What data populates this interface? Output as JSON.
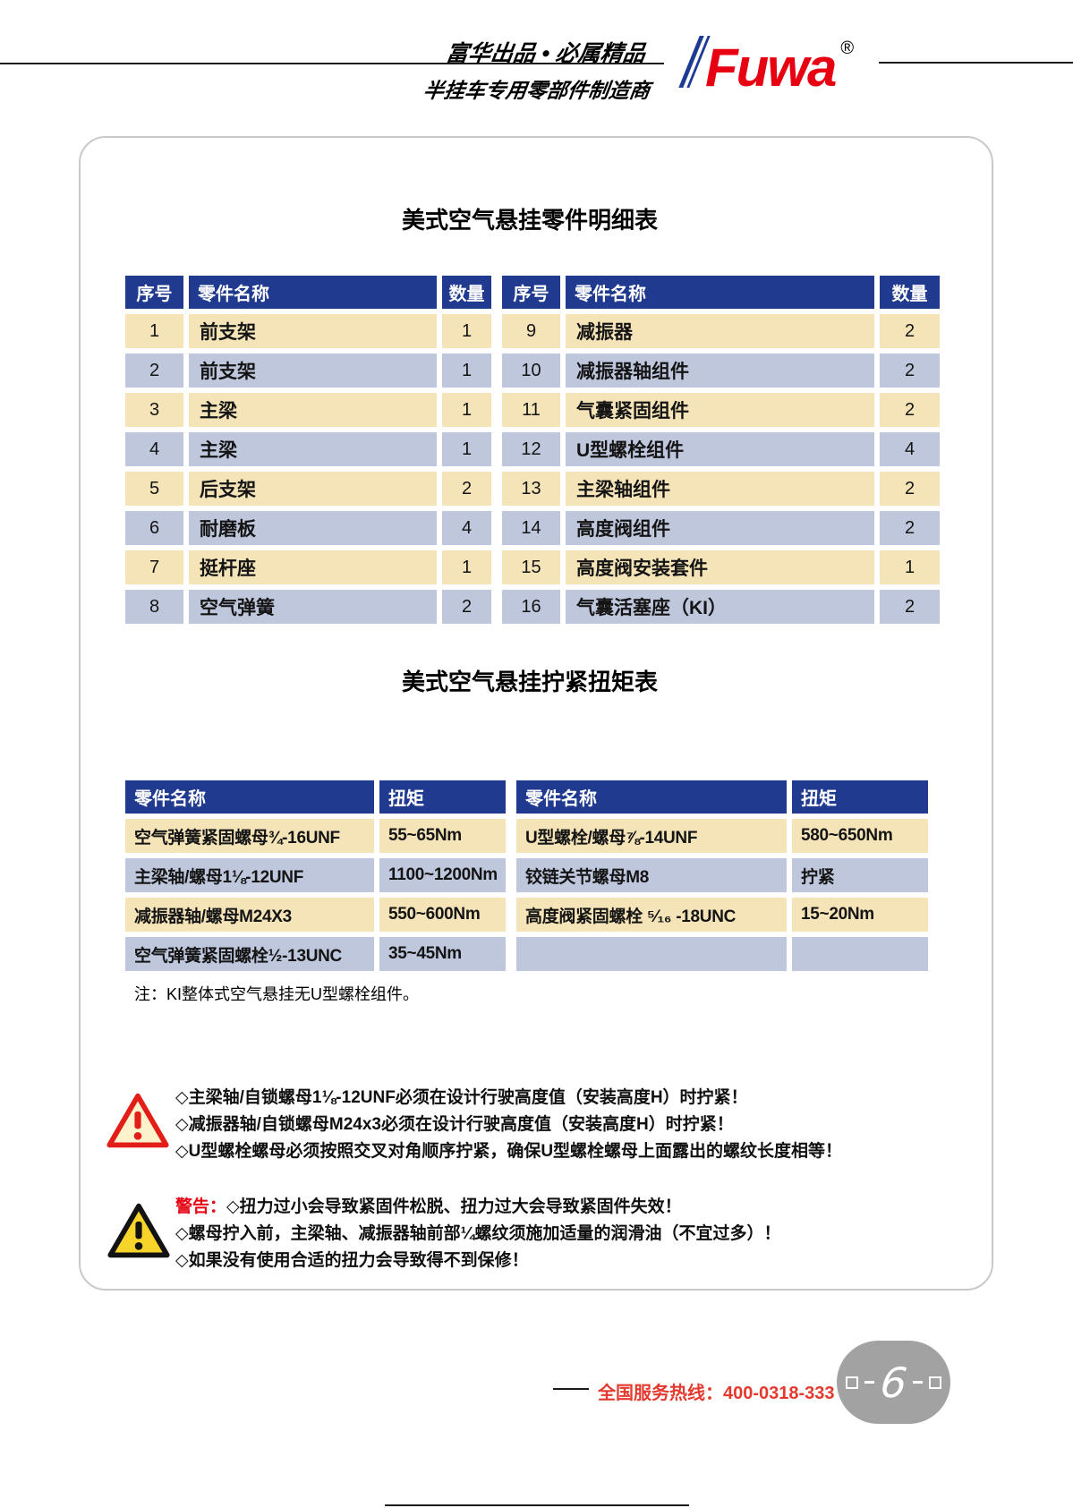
{
  "header": {
    "slogan_top": "富华出品 • 必属精品",
    "slogan_bottom": "半挂车专用零部件制造商",
    "logo_text": "Fuwa",
    "registered_mark": "®"
  },
  "parts_table": {
    "title": "美式空气悬挂零件明细表",
    "col_headers": [
      "序号",
      "零件名称",
      "数量"
    ],
    "rows_left": [
      [
        "1",
        "前支架",
        "1"
      ],
      [
        "2",
        "前支架",
        "1"
      ],
      [
        "3",
        "主梁",
        "1"
      ],
      [
        "4",
        "主梁",
        "1"
      ],
      [
        "5",
        "后支架",
        "2"
      ],
      [
        "6",
        "耐磨板",
        "4"
      ],
      [
        "7",
        "挺杆座",
        "1"
      ],
      [
        "8",
        "空气弹簧",
        "2"
      ]
    ],
    "rows_right": [
      [
        "9",
        "减振器",
        "2"
      ],
      [
        "10",
        "减振器轴组件",
        "2"
      ],
      [
        "11",
        "气囊紧固组件",
        "2"
      ],
      [
        "12",
        "U型螺栓组件",
        "4"
      ],
      [
        "13",
        "主梁轴组件",
        "2"
      ],
      [
        "14",
        "高度阀组件",
        "2"
      ],
      [
        "15",
        "高度阀安装套件",
        "1"
      ],
      [
        "16",
        "气囊活塞座（KI）",
        "2"
      ]
    ]
  },
  "torque_table": {
    "title": "美式空气悬挂拧紧扭矩表",
    "col_headers": [
      "零件名称",
      "扭矩"
    ],
    "rows_left": [
      [
        "空气弹簧紧固螺母¾-16UNF",
        "55~65Nm"
      ],
      [
        "主梁轴/螺母1⅛-12UNF",
        "1100~1200Nm"
      ],
      [
        "减振器轴/螺母M24X3",
        "550~600Nm"
      ],
      [
        "空气弹簧紧固螺栓½-13UNC",
        "35~45Nm"
      ]
    ],
    "rows_right": [
      [
        "U型螺栓/螺母⅞-14UNF",
        "580~650Nm"
      ],
      [
        "铰链关节螺母M8",
        "拧紧"
      ],
      [
        "高度阀紧固螺栓 ⁵⁄₁₆ -18UNC",
        "15~20Nm"
      ],
      [
        "",
        ""
      ]
    ]
  },
  "note": "注：KI整体式空气悬挂无U型螺栓组件。",
  "caution": {
    "lines": [
      "◇主梁轴/自锁螺母1⅛-12UNF必须在设计行驶高度值（安装高度H）时拧紧！",
      "◇减振器轴/自锁螺母M24x3必须在设计行驶高度值（安装高度H）时拧紧！",
      "◇U型螺栓螺母必须按照交叉对角顺序拧紧，确保U型螺栓螺母上面露出的螺纹长度相等！"
    ]
  },
  "warning": {
    "label": "警告：",
    "lines": [
      "◇扭力过小会导致紧固件松脱、扭力过大会导致紧固件失效！",
      "◇螺母拧入前，主梁轴、减振器轴前部¼螺纹须施加适量的润滑油（不宜过多）！",
      "◇如果没有使用合适的扭力会导致得不到保修！"
    ]
  },
  "footer": {
    "hotline": "全国服务热线：400-0318-333",
    "page_number": "6"
  },
  "colors": {
    "table_header_navy": "#1f3a8e",
    "row_cream": "#f5e4b8",
    "row_bluegray": "#bfc7dd",
    "logo_red": "#e60012",
    "logo_blue": "#1d3b94",
    "hotline_red": "#e4392e",
    "caution_red": "#e31e18",
    "warning_yellow": "#f7d42a"
  }
}
